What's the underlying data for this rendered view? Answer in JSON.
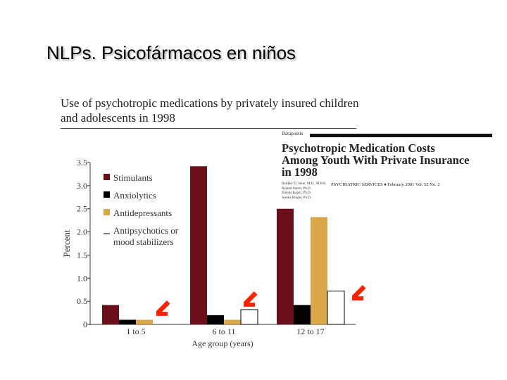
{
  "slide": {
    "title": "NLPs. Psicofármacos en niños"
  },
  "figure": {
    "caption": "Use of psychotropic medications by privately insured children and adolescents in 1998"
  },
  "article": {
    "kicker": "Datapoints",
    "headline": "Psychotropic Medication Costs Among Youth With Private Insurance in 1998",
    "authors": [
      "Bradley D. Stein, M.D., M.P.H.",
      "Roland Sturm, Ph.D.",
      "Kanika Kapur, Ph.D.",
      "Jeanne Ringel, Ph.D."
    ],
    "journal": "PSYCHIATRIC SERVICES  ♦  February 2001   Vol. 52   No. 2"
  },
  "chart_data": {
    "type": "bar",
    "title": "Use of psychotropic medications by privately insured children and adolescents in 1998",
    "xlabel": "Age group (years)",
    "ylabel": "Percent",
    "categories": [
      "1 to 5",
      "6 to 11",
      "12 to 17"
    ],
    "yticks": [
      "0",
      "0.5",
      "1.0",
      "1.5",
      "2.0",
      "2.5",
      "3.0",
      "3.5"
    ],
    "ylim": [
      0,
      3.5
    ],
    "grid": false,
    "legend_position": "top-left",
    "series": [
      {
        "name": "Stimulants",
        "color": "#6b0f1a",
        "values": [
          0.42,
          3.42,
          2.5
        ]
      },
      {
        "name": "Anxiolytics",
        "color": "#000000",
        "values": [
          0.1,
          0.2,
          0.42
        ]
      },
      {
        "name": "Antidepressants",
        "color": "#d9a64a",
        "values": [
          0.1,
          0.1,
          2.32
        ]
      },
      {
        "name": "Antipsychotics or mood stabilizers",
        "color": "#ffffff",
        "values": [
          0.0,
          0.32,
          0.72
        ]
      }
    ],
    "highlight_arrows": {
      "color": "#ff2200",
      "icon": "arrow-down-left-icon",
      "targets": [
        "1 to 5",
        "6 to 11",
        "12 to 17"
      ]
    }
  }
}
